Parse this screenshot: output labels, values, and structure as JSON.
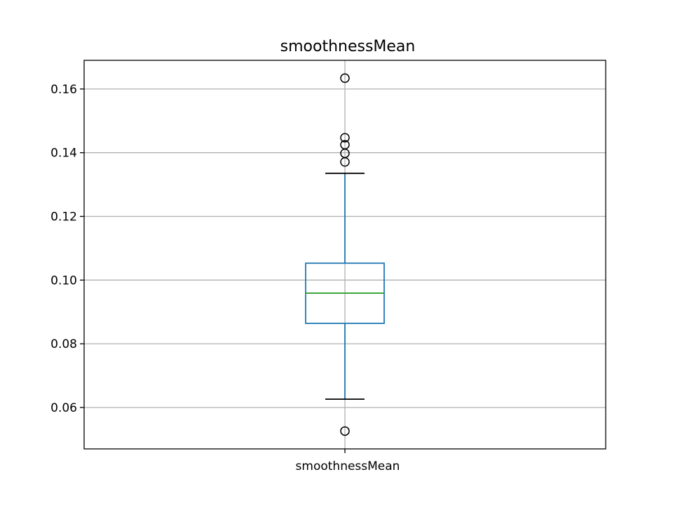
{
  "chart_data": {
    "type": "box",
    "title": "smoothnessMean",
    "categories": [
      "smoothnessMean"
    ],
    "xlabel": "",
    "ylabel": "",
    "ylim": [
      0.047,
      0.169
    ],
    "yticks": [
      0.06,
      0.08,
      0.1,
      0.12,
      0.14,
      0.16
    ],
    "ytick_labels": [
      "0.06",
      "0.08",
      "0.10",
      "0.12",
      "0.14",
      "0.16"
    ],
    "grid": true,
    "boxes": [
      {
        "name": "smoothnessMean",
        "whisker_low": 0.0626,
        "q1": 0.0864,
        "median": 0.0959,
        "q3": 0.1053,
        "whisker_high": 0.1335,
        "outliers": [
          0.0526,
          0.1371,
          0.1398,
          0.1425,
          0.1447,
          0.1634
        ]
      }
    ],
    "colors": {
      "box": "#1f77b4",
      "whisker": "#1f77b4",
      "cap": "#000000",
      "median": "#2ca02c",
      "grid": "#b0b0b0",
      "outlier_edge": "#000000"
    }
  }
}
